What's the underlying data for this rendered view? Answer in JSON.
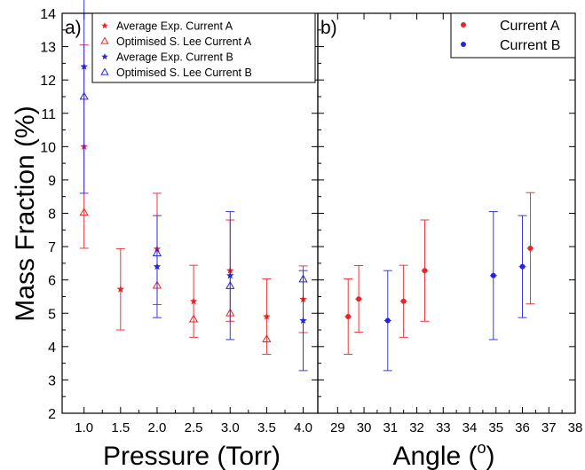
{
  "colors": {
    "series_a": "#e8242a",
    "series_b": "#2424e0",
    "axis": "#000000"
  },
  "chart_data": [
    {
      "panel_label": "a)",
      "type": "scatter",
      "xlabel": "Pressure (Torr)",
      "ylabel": "Mass Fraction (%)",
      "xlim": [
        0.7,
        4.2
      ],
      "ylim": [
        2,
        14
      ],
      "xticks": [
        1.0,
        1.5,
        2.0,
        2.5,
        3.0,
        3.5,
        4.0
      ],
      "xtick_labels": [
        "1.0",
        "1.5",
        "2.0",
        "2.5",
        "3.0",
        "3.5",
        "4.0"
      ],
      "yticks": [
        2,
        3,
        4,
        5,
        6,
        7,
        8,
        9,
        10,
        11,
        12,
        13,
        14
      ],
      "ytick_labels": [
        "2",
        "3",
        "4",
        "5",
        "6",
        "7",
        "8",
        "9",
        "10",
        "11",
        "12",
        "13",
        "14"
      ],
      "legend_position": "top-right",
      "series": [
        {
          "name": "Average Exp. Current A",
          "marker": "star",
          "color_key": "series_a",
          "points": [
            {
              "x": 1.0,
              "y": 10.0,
              "err": 3.05
            },
            {
              "x": 1.5,
              "y": 5.72,
              "err": 1.22
            },
            {
              "x": 2.0,
              "y": 6.93,
              "err": 1.67
            },
            {
              "x": 2.5,
              "y": 5.36,
              "err": 1.08
            },
            {
              "x": 3.0,
              "y": 6.28,
              "err": 1.52
            },
            {
              "x": 3.5,
              "y": 4.9,
              "err": 1.13
            },
            {
              "x": 4.0,
              "y": 5.42,
              "err": 1.0
            }
          ]
        },
        {
          "name": "Optimised S. Lee Current A",
          "marker": "triangle",
          "color_key": "series_a",
          "points": [
            {
              "x": 1.0,
              "y": 8.02
            },
            {
              "x": 2.0,
              "y": 5.83
            },
            {
              "x": 2.5,
              "y": 4.82
            },
            {
              "x": 3.0,
              "y": 5.0
            },
            {
              "x": 3.5,
              "y": 4.22
            }
          ]
        },
        {
          "name": "Average Exp. Current B",
          "marker": "star",
          "color_key": "series_b",
          "points": [
            {
              "x": 1.0,
              "y": 12.4,
              "err": 3.8
            },
            {
              "x": 2.0,
              "y": 6.4,
              "err": 1.53
            },
            {
              "x": 3.0,
              "y": 6.13,
              "err": 1.92
            },
            {
              "x": 4.0,
              "y": 4.78,
              "err": 1.5
            }
          ]
        },
        {
          "name": "Optimised S. Lee Current B",
          "marker": "triangle",
          "color_key": "series_b",
          "points": [
            {
              "x": 1.0,
              "y": 11.5
            },
            {
              "x": 2.0,
              "y": 6.8
            },
            {
              "x": 3.0,
              "y": 5.82
            },
            {
              "x": 4.0,
              "y": 6.02
            }
          ]
        }
      ]
    },
    {
      "panel_label": "b)",
      "type": "scatter",
      "xlabel": "Angle (",
      "xlabel_superscript": "o",
      "xlabel_suffix": ")",
      "xlim": [
        28.25,
        38.0
      ],
      "ylim": [
        2,
        14
      ],
      "xticks": [
        29,
        30,
        31,
        32,
        33,
        34,
        35,
        36,
        37,
        38
      ],
      "xtick_labels": [
        "29",
        "30",
        "31",
        "32",
        "33",
        "34",
        "35",
        "36",
        "37",
        "38"
      ],
      "yticks": [
        2,
        3,
        4,
        5,
        6,
        7,
        8,
        9,
        10,
        11,
        12,
        13,
        14
      ],
      "legend_position": "top-right",
      "series": [
        {
          "name": "Current A",
          "marker": "dot",
          "color_key": "series_a",
          "points": [
            {
              "x": 29.4,
              "y": 4.9,
              "err": 1.13
            },
            {
              "x": 29.8,
              "y": 5.43,
              "err": 1.0
            },
            {
              "x": 31.5,
              "y": 5.36,
              "err": 1.08
            },
            {
              "x": 32.3,
              "y": 6.28,
              "err": 1.52
            },
            {
              "x": 36.3,
              "y": 6.95,
              "err": 1.67
            }
          ]
        },
        {
          "name": "Current B",
          "marker": "dot",
          "color_key": "series_b",
          "points": [
            {
              "x": 30.9,
              "y": 4.78,
              "err": 1.5
            },
            {
              "x": 34.9,
              "y": 6.13,
              "err": 1.92
            },
            {
              "x": 36.0,
              "y": 6.4,
              "err": 1.53
            }
          ]
        }
      ]
    }
  ]
}
